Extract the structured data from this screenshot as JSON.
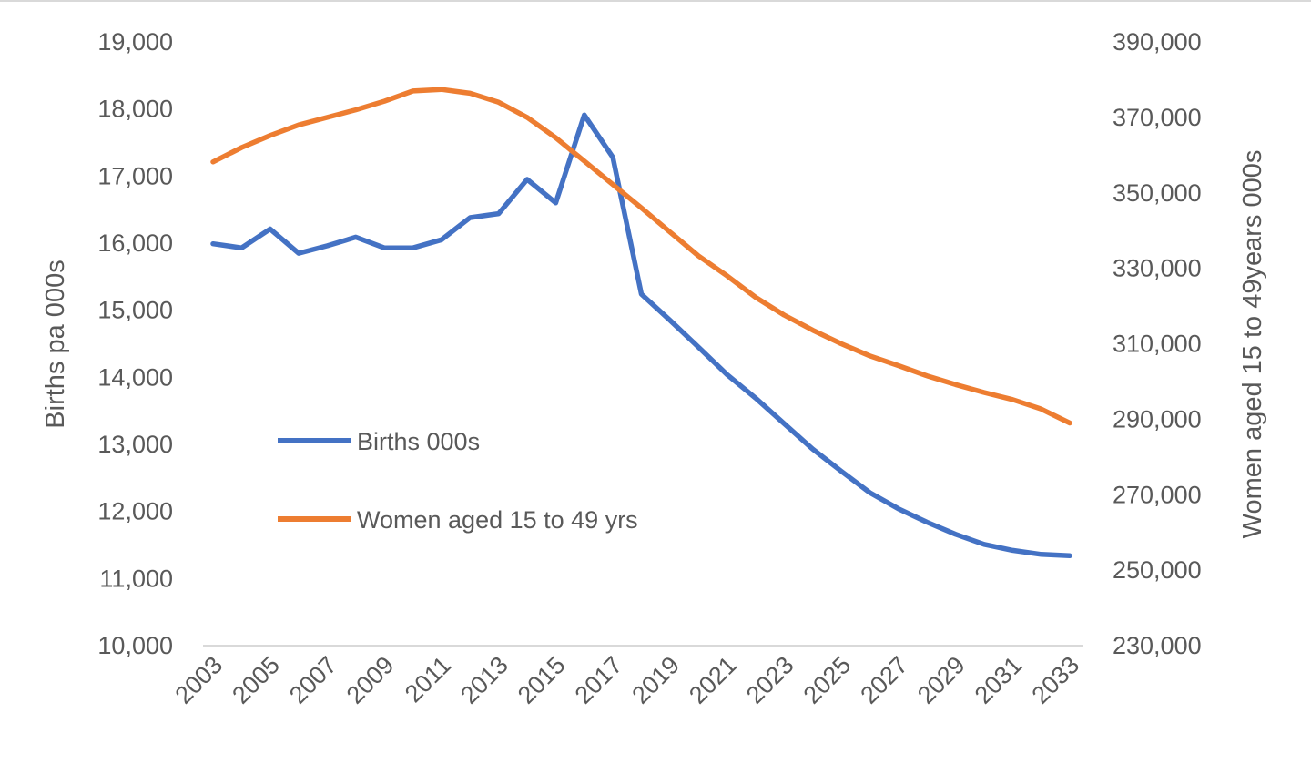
{
  "chart_data": {
    "type": "line",
    "title": "",
    "x": [
      2003,
      2004,
      2005,
      2006,
      2007,
      2008,
      2009,
      2010,
      2011,
      2012,
      2013,
      2014,
      2015,
      2016,
      2017,
      2018,
      2019,
      2020,
      2021,
      2022,
      2023,
      2024,
      2025,
      2026,
      2027,
      2028,
      2029,
      2030,
      2031,
      2032,
      2033
    ],
    "x_tick_labels": [
      "2003",
      "2005",
      "2007",
      "2009",
      "2011",
      "2013",
      "2015",
      "2017",
      "2019",
      "2021",
      "2023",
      "2025",
      "2027",
      "2029",
      "2031",
      "2033"
    ],
    "y_left": {
      "label": "Births pa 000s",
      "range": [
        10000,
        19000
      ],
      "ticks": [
        10000,
        11000,
        12000,
        13000,
        14000,
        15000,
        16000,
        17000,
        18000,
        19000
      ],
      "tick_labels": [
        "10,000",
        "11,000",
        "12,000",
        "13,000",
        "14,000",
        "15,000",
        "16,000",
        "17,000",
        "18,000",
        "19,000"
      ]
    },
    "y_right": {
      "label": "Women aged 15 to 49years 000s",
      "range": [
        230000,
        390000
      ],
      "ticks": [
        230000,
        250000,
        270000,
        290000,
        310000,
        330000,
        350000,
        370000,
        390000
      ],
      "tick_labels": [
        "230,000",
        "250,000",
        "270,000",
        "290,000",
        "310,000",
        "330,000",
        "350,000",
        "370,000",
        "390,000"
      ]
    },
    "series": [
      {
        "name": "Births 000s",
        "axis": "left",
        "color": "#4472C4",
        "values": [
          15990,
          15930,
          16210,
          15850,
          15960,
          16090,
          15930,
          15930,
          16050,
          16380,
          16440,
          16950,
          16600,
          17910,
          17280,
          15240,
          14850,
          14450,
          14040,
          13690,
          13310,
          12930,
          12600,
          12280,
          12040,
          11840,
          11660,
          11510,
          11420,
          11360,
          11340
        ]
      },
      {
        "name": "Women aged 15 to 49 yrs",
        "axis": "right",
        "color": "#ED7D31",
        "values": [
          358200,
          362000,
          365200,
          368000,
          370000,
          372000,
          374300,
          377000,
          377400,
          376400,
          374000,
          370000,
          364600,
          358400,
          352200,
          346000,
          339600,
          333300,
          328000,
          322300,
          317600,
          313600,
          310000,
          306800,
          304200,
          301500,
          299200,
          297100,
          295200,
          292700,
          289000
        ]
      }
    ],
    "legend": {
      "placement": "inside-left",
      "items": [
        "Births 000s",
        "Women aged 15 to 49 yrs"
      ]
    },
    "grid": false
  }
}
